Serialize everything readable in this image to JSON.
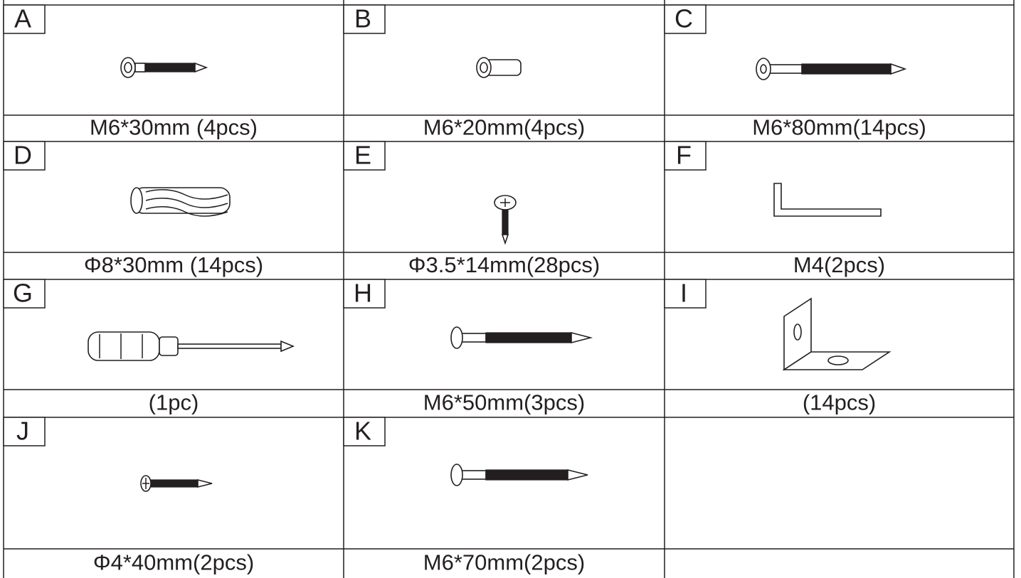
{
  "parts": [
    {
      "letter": "A",
      "label": "M6*30mm (4pcs)"
    },
    {
      "letter": "B",
      "label": "M6*20mm(4pcs)"
    },
    {
      "letter": "C",
      "label": "M6*80mm(14pcs)"
    },
    {
      "letter": "D",
      "label": "Φ8*30mm   (14pcs)"
    },
    {
      "letter": "E",
      "label": "Φ3.5*14mm(28pcs)"
    },
    {
      "letter": "F",
      "label": "M4(2pcs)"
    },
    {
      "letter": "G",
      "label": "(1pc)"
    },
    {
      "letter": "H",
      "label": "M6*50mm(3pcs)"
    },
    {
      "letter": "I",
      "label": "(14pcs)"
    },
    {
      "letter": "J",
      "label": "Φ4*40mm(2pcs)"
    },
    {
      "letter": "K",
      "label": "M6*70mm(2pcs)"
    }
  ]
}
